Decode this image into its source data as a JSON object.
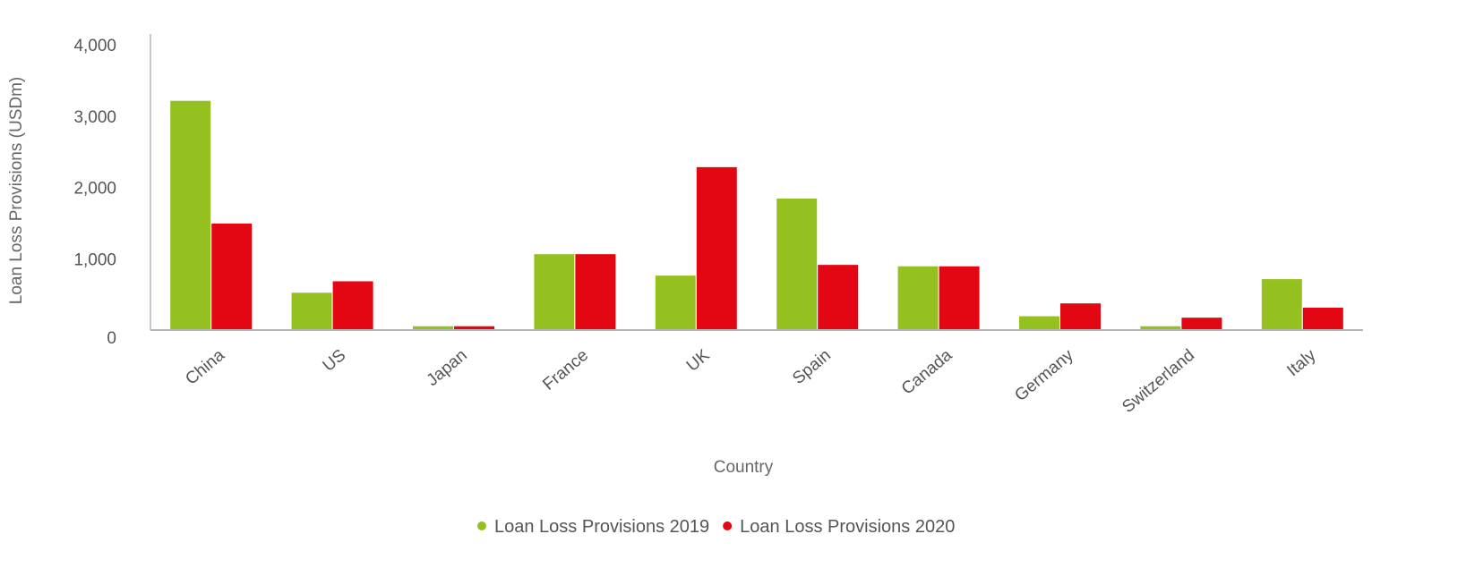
{
  "chart_data": {
    "type": "bar",
    "title": "",
    "xlabel": "Country",
    "ylabel": "Loan Loss Provisions (USDm)",
    "categories": [
      "China",
      "US",
      "Japan",
      "France",
      "UK",
      "Spain",
      "Canada",
      "Germany",
      "Switzerland",
      "Italy"
    ],
    "series": [
      {
        "name": "Loan Loss Provisions 2019",
        "color": "#95c120",
        "values": [
          3220,
          530,
          60,
          1070,
          770,
          1850,
          900,
          200,
          60,
          720
        ]
      },
      {
        "name": "Loan Loss Provisions 2020",
        "color": "#e30613",
        "values": [
          1500,
          690,
          60,
          1070,
          2290,
          920,
          900,
          380,
          180,
          320
        ]
      }
    ],
    "ylim": [
      0,
      4000
    ],
    "yticks": [
      0,
      1000,
      2000,
      3000,
      4000
    ],
    "ytick_labels": [
      "0",
      "1,000",
      "2,000",
      "3,000",
      "4,000"
    ],
    "grid": false,
    "legend": "bottom-center"
  }
}
